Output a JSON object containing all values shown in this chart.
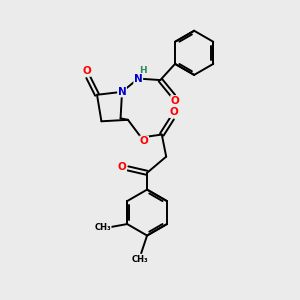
{
  "background_color": "#ebebeb",
  "bond_color": "#000000",
  "atom_colors": {
    "O": "#ff0000",
    "N": "#0000cd",
    "H": "#2e8b57",
    "C": "#000000"
  },
  "figsize": [
    3.0,
    3.0
  ],
  "dpi": 100
}
